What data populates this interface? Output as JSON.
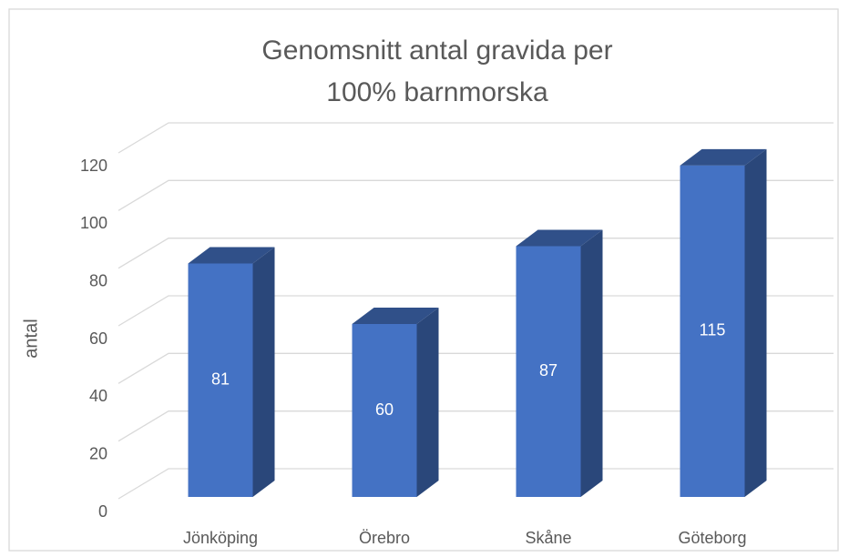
{
  "chart_data": {
    "type": "bar3d",
    "title": [
      "Genomsnitt antal gravida per",
      "100% barnmorska"
    ],
    "ylabel": "antal",
    "categories": [
      "Jönköping",
      "Örebro",
      "Skåne",
      "Göteborg"
    ],
    "values": [
      81,
      60,
      87,
      115
    ],
    "color": "#4472c4",
    "ylim": [
      0,
      120
    ],
    "yticks": [
      0,
      20,
      40,
      60,
      80,
      100,
      120
    ],
    "grid": true
  }
}
